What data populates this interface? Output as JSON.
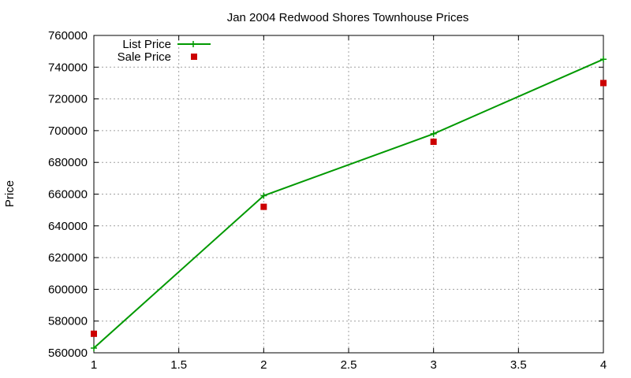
{
  "chart_data": {
    "type": "line",
    "title": "Jan 2004 Redwood Shores Townhouse Prices",
    "xlabel": "",
    "ylabel": "Price",
    "xlim": [
      1,
      4
    ],
    "ylim": [
      560000,
      760000
    ],
    "xticks": [
      "1",
      "1.5",
      "2",
      "2.5",
      "3",
      "3.5",
      "4"
    ],
    "xtick_values": [
      1,
      1.5,
      2,
      2.5,
      3,
      3.5,
      4
    ],
    "yticks": [
      "560000",
      "580000",
      "600000",
      "620000",
      "640000",
      "660000",
      "680000",
      "700000",
      "720000",
      "740000",
      "760000"
    ],
    "ytick_values": [
      560000,
      580000,
      600000,
      620000,
      640000,
      660000,
      680000,
      700000,
      720000,
      740000,
      760000
    ],
    "grid": true,
    "legend_position": "top-left",
    "series": [
      {
        "name": "List Price",
        "style": "line-with-plus-markers",
        "color": "#009900",
        "x": [
          1,
          2,
          3,
          4
        ],
        "y": [
          563000,
          659000,
          698000,
          745000
        ]
      },
      {
        "name": "Sale Price",
        "style": "square-markers",
        "color": "#cc0000",
        "x": [
          1,
          2,
          3,
          4
        ],
        "y": [
          572000,
          652000,
          693000,
          730000
        ]
      }
    ]
  }
}
